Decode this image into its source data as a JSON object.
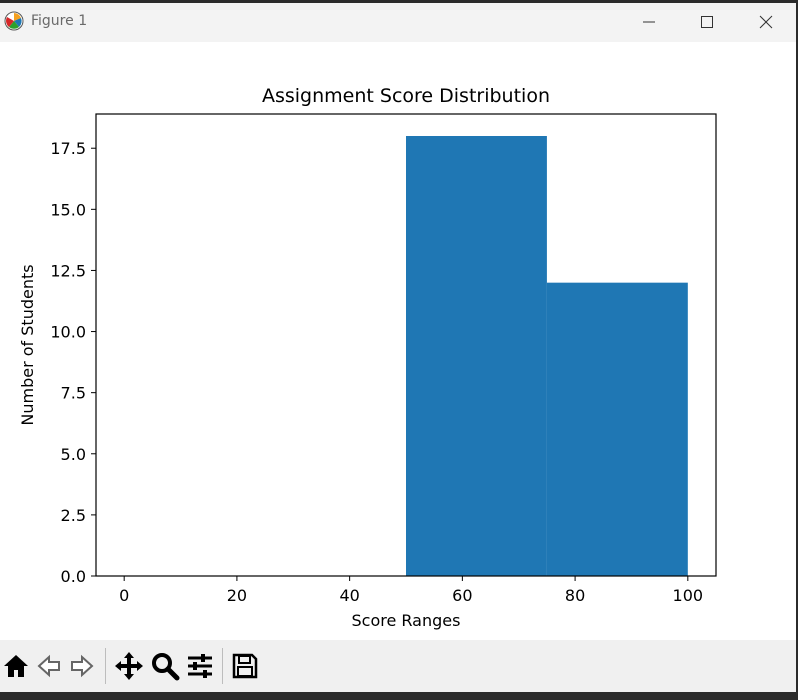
{
  "window": {
    "title": "Figure 1"
  },
  "toolbar": {
    "buttons": [
      {
        "name": "home-icon"
      },
      {
        "name": "back-icon"
      },
      {
        "name": "forward-icon"
      },
      {
        "name": "pan-icon"
      },
      {
        "name": "zoom-icon"
      },
      {
        "name": "configure-subplots-icon"
      },
      {
        "name": "save-icon"
      }
    ]
  },
  "colors": {
    "bar": "#1f77b4",
    "axes": "#000000"
  },
  "chart_data": {
    "type": "bar",
    "title": "Assignment Score Distribution",
    "xlabel": "Score Ranges",
    "ylabel": "Number of Students",
    "bins": [
      {
        "x0": 50,
        "x1": 75,
        "value": 18
      },
      {
        "x0": 75,
        "x1": 100,
        "value": 12
      }
    ],
    "xlim": [
      -5,
      105
    ],
    "ylim": [
      0,
      18.9
    ],
    "xticks": [
      0,
      20,
      40,
      60,
      80,
      100
    ],
    "xtick_labels": [
      "0",
      "20",
      "40",
      "60",
      "80",
      "100"
    ],
    "yticks": [
      0,
      2.5,
      5,
      7.5,
      10,
      12.5,
      15,
      17.5
    ],
    "ytick_labels": [
      "0.0",
      "2.5",
      "5.0",
      "7.5",
      "10.0",
      "12.5",
      "15.0",
      "17.5"
    ],
    "grid": false,
    "legend": false
  }
}
